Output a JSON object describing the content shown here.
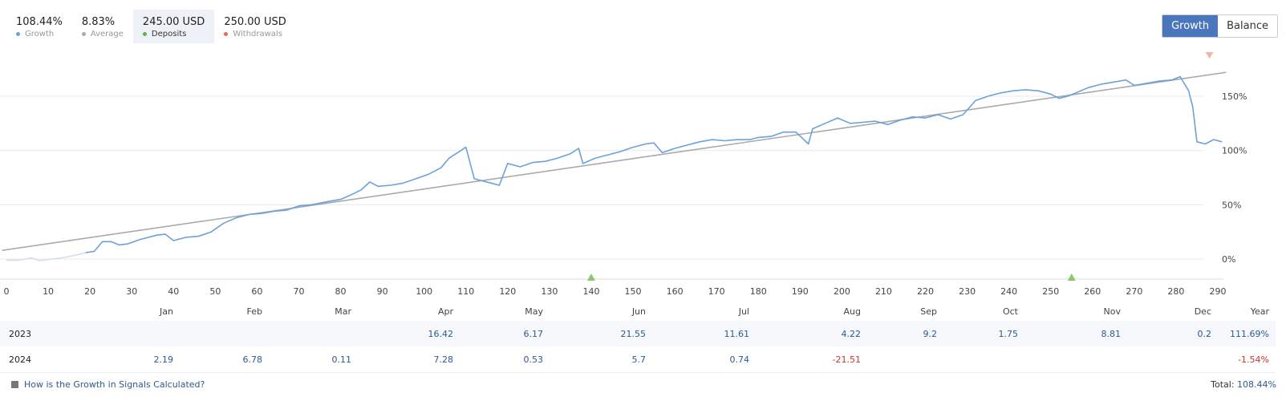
{
  "stats": [
    {
      "value": "108.44%",
      "label": "Growth",
      "color": "#6ba1dc",
      "active": false
    },
    {
      "value": "8.83%",
      "label": "Average",
      "color": "#aaaaaa",
      "active": false
    },
    {
      "value": "245.00 USD",
      "label": "Deposits",
      "color": "#62b246",
      "active": true
    },
    {
      "value": "250.00 USD",
      "label": "Withdrawals",
      "color": "#e96a53",
      "active": false
    }
  ],
  "toggle": {
    "growth_label": "Growth",
    "balance_label": "Balance",
    "active": "growth"
  },
  "chart_data": {
    "type": "line",
    "x_ticks": [
      0,
      10,
      20,
      30,
      40,
      50,
      60,
      70,
      80,
      90,
      100,
      110,
      120,
      130,
      140,
      150,
      160,
      170,
      180,
      190,
      200,
      210,
      220,
      230,
      240,
      250,
      260,
      270,
      280,
      290
    ],
    "y_ticks": [
      "0%",
      "50%",
      "100%",
      "150%"
    ],
    "xlim": [
      0,
      290
    ],
    "ylim": [
      -15,
      185
    ],
    "series": [
      {
        "name": "Growth",
        "color": "#6ba1dc",
        "points": [
          [
            0,
            -1
          ],
          [
            3,
            -1
          ],
          [
            6,
            1
          ],
          [
            8,
            -1.5
          ],
          [
            11,
            0
          ],
          [
            14,
            1.5
          ],
          [
            17,
            4
          ],
          [
            19,
            6
          ],
          [
            21,
            7
          ],
          [
            23,
            16
          ],
          [
            25,
            16
          ],
          [
            27,
            13
          ],
          [
            29,
            14
          ],
          [
            32,
            18
          ],
          [
            36,
            22
          ],
          [
            38,
            23
          ],
          [
            40,
            17
          ],
          [
            43,
            20
          ],
          [
            46,
            21
          ],
          [
            49,
            25
          ],
          [
            52,
            33
          ],
          [
            55,
            38
          ],
          [
            58,
            41
          ],
          [
            61,
            42
          ],
          [
            64,
            44
          ],
          [
            67,
            45
          ],
          [
            70,
            49
          ],
          [
            73,
            50
          ],
          [
            77,
            53
          ],
          [
            80,
            55
          ],
          [
            83,
            60
          ],
          [
            85,
            64
          ],
          [
            87,
            71
          ],
          [
            89,
            67
          ],
          [
            92,
            68
          ],
          [
            95,
            70
          ],
          [
            98,
            74
          ],
          [
            101,
            78
          ],
          [
            104,
            84
          ],
          [
            106,
            93
          ],
          [
            108,
            98
          ],
          [
            110,
            103
          ],
          [
            112,
            74
          ],
          [
            116,
            70
          ],
          [
            118,
            68
          ],
          [
            120,
            88
          ],
          [
            123,
            85
          ],
          [
            126,
            89
          ],
          [
            129,
            90
          ],
          [
            132,
            93
          ],
          [
            135,
            97
          ],
          [
            137,
            102
          ],
          [
            138,
            88
          ],
          [
            141,
            93
          ],
          [
            144,
            96
          ],
          [
            147,
            99
          ],
          [
            150,
            103
          ],
          [
            153,
            106
          ],
          [
            155,
            107
          ],
          [
            157,
            98
          ],
          [
            160,
            102
          ],
          [
            163,
            105
          ],
          [
            166,
            108
          ],
          [
            169,
            110
          ],
          [
            172,
            109
          ],
          [
            175,
            110
          ],
          [
            178,
            110
          ],
          [
            180,
            112
          ],
          [
            183,
            113
          ],
          [
            186,
            117
          ],
          [
            189,
            117
          ],
          [
            192,
            106
          ],
          [
            193,
            120
          ],
          [
            196,
            125
          ],
          [
            199,
            130
          ],
          [
            202,
            125
          ],
          [
            205,
            126
          ],
          [
            208,
            127
          ],
          [
            211,
            124
          ],
          [
            214,
            128
          ],
          [
            217,
            131
          ],
          [
            220,
            130
          ],
          [
            223,
            133
          ],
          [
            226,
            129
          ],
          [
            229,
            133
          ],
          [
            232,
            146
          ],
          [
            235,
            150
          ],
          [
            238,
            153
          ],
          [
            241,
            155
          ],
          [
            244,
            156
          ],
          [
            247,
            155
          ],
          [
            250,
            152
          ],
          [
            252,
            148
          ],
          [
            254,
            150
          ],
          [
            256,
            153
          ],
          [
            259,
            158
          ],
          [
            262,
            161
          ],
          [
            265,
            163
          ],
          [
            268,
            165
          ],
          [
            270,
            160
          ],
          [
            273,
            162
          ],
          [
            276,
            164
          ],
          [
            279,
            165
          ],
          [
            281,
            168
          ],
          [
            283,
            155
          ],
          [
            284,
            140
          ],
          [
            285,
            108
          ],
          [
            287,
            106
          ],
          [
            289,
            110
          ],
          [
            291,
            108
          ]
        ]
      },
      {
        "name": "Average",
        "color": "#aaaaaa",
        "points": [
          [
            -1,
            8
          ],
          [
            292,
            172
          ]
        ]
      }
    ],
    "markers": [
      {
        "type": "deposit",
        "x": 140,
        "color": "#8cc66e"
      },
      {
        "type": "deposit",
        "x": 255,
        "color": "#8cc66e"
      },
      {
        "type": "withdrawal",
        "x": 288,
        "color": "#f5b3a6"
      }
    ]
  },
  "table": {
    "headers": [
      "",
      "Jan",
      "Feb",
      "Mar",
      "Apr",
      "May",
      "Jun",
      "Jul",
      "Aug",
      "Sep",
      "Oct",
      "Nov",
      "Dec",
      "Year"
    ],
    "rows": [
      {
        "year": "2023",
        "values": [
          "",
          "",
          "",
          "16.42",
          "6.17",
          "21.55",
          "11.61",
          "4.22",
          "9.2",
          "1.75",
          "8.81",
          "0.2"
        ],
        "total": "111.69%",
        "total_negative": false
      },
      {
        "year": "2024",
        "values": [
          "2.19",
          "6.78",
          "0.11",
          "7.28",
          "0.53",
          "5.7",
          "0.74",
          "-21.51",
          "",
          "",
          "",
          ""
        ],
        "total": "-1.54%",
        "total_negative": true
      }
    ]
  },
  "footer": {
    "link_text": "How is the Growth in Signals Calculated?",
    "total_label": "Total:",
    "total_value": "108.44%"
  }
}
